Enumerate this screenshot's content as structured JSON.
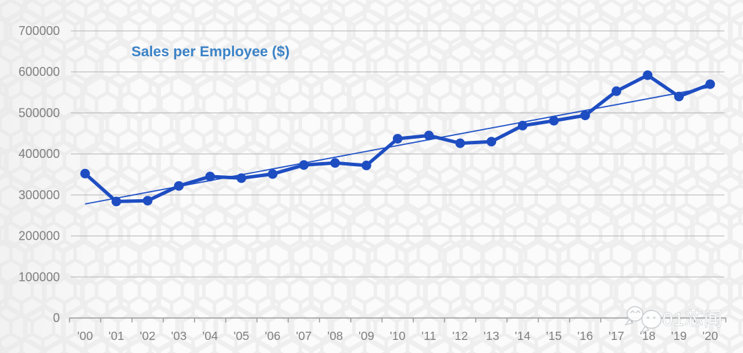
{
  "chart_data": {
    "type": "line",
    "title": "Sales per Employee ($)",
    "xlabel": "",
    "ylabel": "",
    "categories": [
      "'00",
      "'01",
      "'02",
      "'03",
      "'04",
      "'05",
      "'06",
      "'07",
      "'08",
      "'09",
      "'10",
      "'11",
      "'12",
      "'13",
      "'14",
      "'15",
      "'16",
      "'17",
      "'18",
      "'19",
      "'20"
    ],
    "series": [
      {
        "name": "Sales per Employee ($)",
        "values": [
          352000,
          284000,
          286000,
          322000,
          345000,
          341000,
          351000,
          373000,
          378000,
          372000,
          437000,
          445000,
          426000,
          430000,
          469000,
          481000,
          494000,
          553000,
          592000,
          540000,
          570000
        ]
      }
    ],
    "trendline": {
      "type": "linear",
      "start_value": 278000,
      "end_value": 563000
    },
    "y_ticks": [
      0,
      100000,
      200000,
      300000,
      400000,
      500000,
      600000,
      700000
    ],
    "ylim": [
      0,
      700000
    ],
    "grid": true,
    "legend": "none",
    "colors": {
      "series": "#1e4dc2",
      "trendline": "#2253c8",
      "title": "#3b82c6",
      "axis_text": "#7f7f7f",
      "gridline": "#b3b3b3",
      "axis_line": "#9c9c9c"
    }
  },
  "watermark": {
    "text": "01芯闻",
    "icon": "wechat-chat-bubbles-icon"
  }
}
